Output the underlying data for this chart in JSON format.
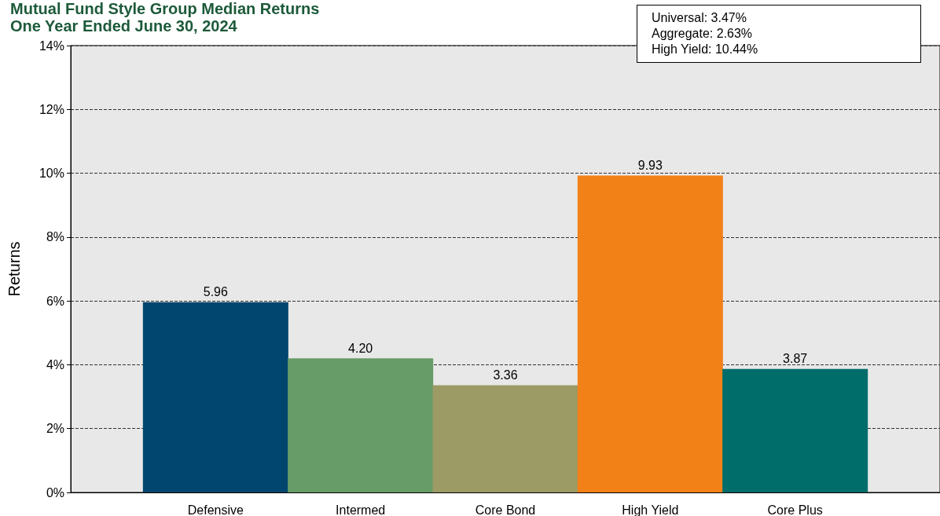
{
  "chart_data": {
    "type": "bar",
    "title": "Mutual Fund Style Group Median Returns",
    "subtitle": "One Year Ended June 30, 2024",
    "ylabel": "Returns",
    "categories": [
      "Defensive",
      "Intermed",
      "Core Bond",
      "High Yield",
      "Core Plus"
    ],
    "values": [
      5.96,
      4.2,
      3.36,
      9.93,
      3.87
    ],
    "value_labels": [
      "5.96",
      "4.20",
      "3.36",
      "9.93",
      "3.87"
    ],
    "colors": [
      "#00466e",
      "#679b68",
      "#9c9a65",
      "#f28118",
      "#006d6b"
    ],
    "ylim": [
      0,
      14
    ],
    "yticks": [
      {
        "value": 0,
        "label": "0%"
      },
      {
        "value": 2,
        "label": "2%"
      },
      {
        "value": 4,
        "label": "4%"
      },
      {
        "value": 6,
        "label": "6%"
      },
      {
        "value": 8,
        "label": "8%"
      },
      {
        "value": 10,
        "label": "10%"
      },
      {
        "value": 12,
        "label": "12%"
      },
      {
        "value": 14,
        "label": "14%"
      }
    ],
    "grid": "y",
    "annotations": [
      "Universal: 3.47%",
      "Aggregate: 2.63%",
      "High Yield: 10.44%"
    ]
  }
}
